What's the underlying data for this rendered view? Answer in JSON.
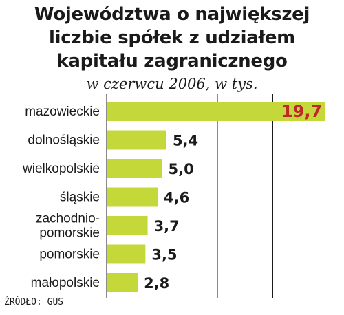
{
  "title_lines": [
    "Województwa o największej",
    "liczbie spółek z udziałem",
    "kapitału zagranicznego"
  ],
  "subtitle": "w czerwcu 2006, w tys.",
  "source": "ŹRÓDŁO: GUS",
  "colors": {
    "bar": "#c5d83a",
    "highlight_value": "#c0272d",
    "grid": "#1a1a1a"
  },
  "chart_data": {
    "type": "bar",
    "orientation": "horizontal",
    "title": "Województwa o największej liczbie spółek z udziałem kapitału zagranicznego",
    "subtitle": "w czerwcu 2006, w tys.",
    "categories": [
      [
        "mazowieckie"
      ],
      [
        "dolnośląskie"
      ],
      [
        "wielkopolskie"
      ],
      [
        "śląskie"
      ],
      [
        "zachodnio-",
        "pomorskie"
      ],
      [
        "pomorskie"
      ],
      [
        "małopolskie"
      ]
    ],
    "values": [
      19.7,
      5.4,
      5.0,
      4.6,
      3.7,
      3.5,
      2.8
    ],
    "value_labels": [
      "19,7",
      "5,4",
      "5,0",
      "4,6",
      "3,7",
      "3,5",
      "2,8"
    ],
    "xlim": [
      0,
      20
    ],
    "grid": true
  }
}
